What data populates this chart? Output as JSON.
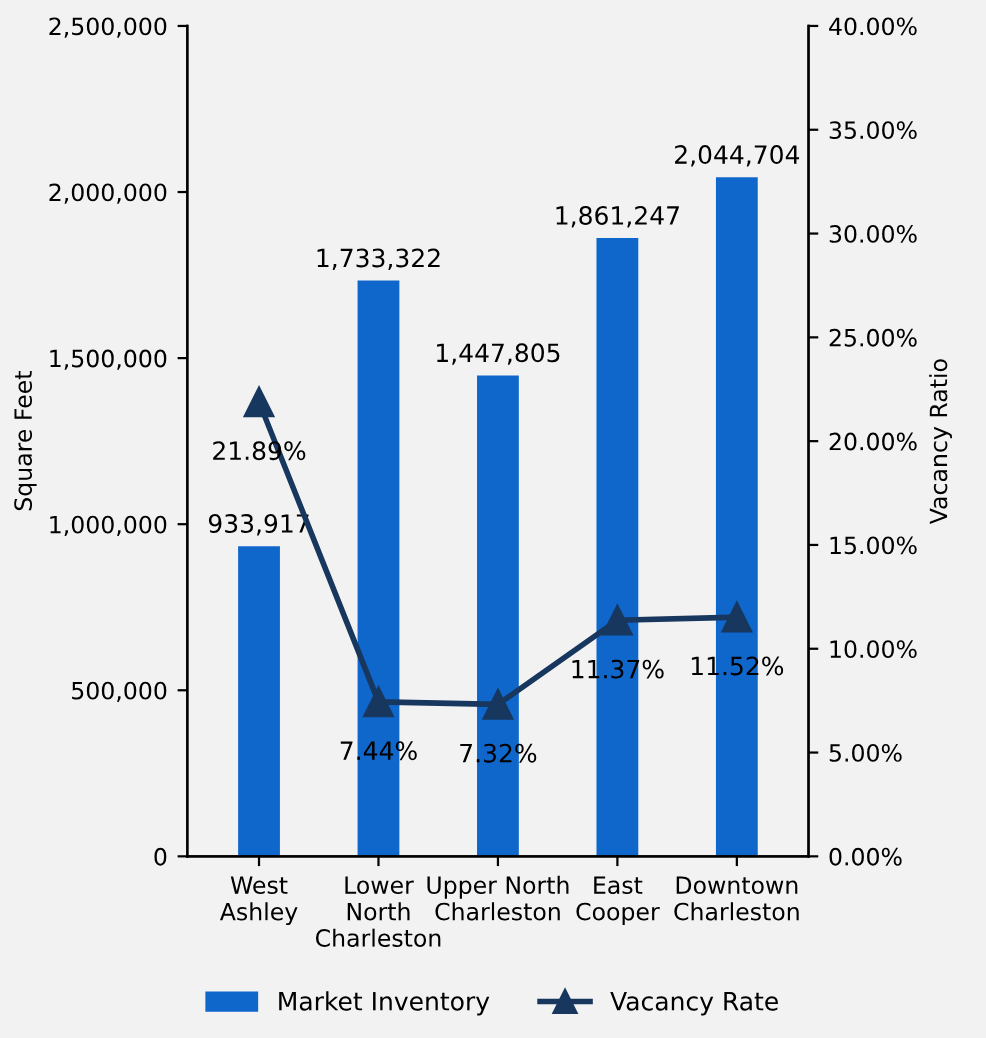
{
  "chart_data": {
    "type": "bar",
    "ylabel": "Square Feet",
    "y2label": "Vacancy Ratio",
    "categories": [
      "West\nAshley",
      "Lower\nNorth\nCharleston",
      "Upper North\nCharleston",
      "East\nCooper",
      "Downtown\nCharleston"
    ],
    "series": [
      {
        "name": "Market Inventory",
        "color": "#0f67cc",
        "values": [
          933917,
          1733322,
          1447805,
          1861247,
          2044704
        ],
        "value_labels": [
          "933,917",
          "1,733,322",
          "1,447,805",
          "1,861,247",
          "2,044,704"
        ]
      },
      {
        "name": "Vacancy Rate",
        "type": "line",
        "axis": "y2",
        "color": "#17375e",
        "marker": "triangle",
        "values": [
          21.89,
          7.44,
          7.32,
          11.37,
          11.52
        ],
        "value_labels": [
          "21.89%",
          "7.44%",
          "7.32%",
          "11.37%",
          "11.52%"
        ]
      }
    ],
    "ylim": [
      0,
      2500000
    ],
    "yticks": [
      {
        "value": 0,
        "label": "0"
      },
      {
        "value": 500000,
        "label": "500,000"
      },
      {
        "value": 1000000,
        "label": "1,000,000"
      },
      {
        "value": 1500000,
        "label": "1,500,000"
      },
      {
        "value": 2000000,
        "label": "2,000,000"
      },
      {
        "value": 2500000,
        "label": "2,500,000"
      }
    ],
    "y2lim": [
      0,
      40
    ],
    "y2ticks": [
      {
        "value": 0,
        "label": "0.00%"
      },
      {
        "value": 5,
        "label": "5.00%"
      },
      {
        "value": 10,
        "label": "10.00%"
      },
      {
        "value": 15,
        "label": "15.00%"
      },
      {
        "value": 20,
        "label": "20.00%"
      },
      {
        "value": 25,
        "label": "25.00%"
      },
      {
        "value": 30,
        "label": "30.00%"
      },
      {
        "value": 35,
        "label": "35.00%"
      },
      {
        "value": 40,
        "label": "40.00%"
      }
    ],
    "legend": "bottom",
    "grid": false
  }
}
